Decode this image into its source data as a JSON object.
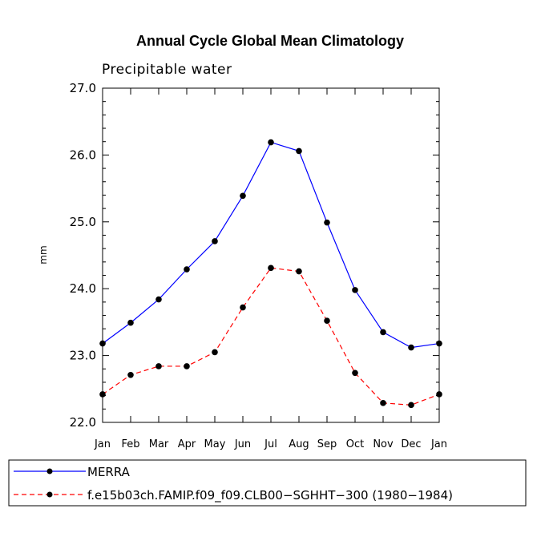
{
  "chart_data": {
    "type": "line",
    "title": "Annual Cycle Global Mean Climatology",
    "subtitle": "Precipitable water",
    "xlabel": "",
    "ylabel": "mm",
    "categories": [
      "Jan",
      "Feb",
      "Mar",
      "Apr",
      "May",
      "Jun",
      "Jul",
      "Aug",
      "Sep",
      "Oct",
      "Nov",
      "Dec",
      "Jan"
    ],
    "ylim": [
      22.0,
      27.0
    ],
    "yticks": [
      "22.0",
      "23.0",
      "24.0",
      "25.0",
      "26.0",
      "27.0"
    ],
    "grid": false,
    "legend_position": "bottom",
    "series": [
      {
        "name": "MERRA",
        "color": "#0000ff",
        "dash": "solid",
        "values": [
          23.18,
          23.49,
          23.84,
          24.29,
          24.71,
          25.39,
          26.19,
          26.06,
          24.99,
          23.98,
          23.35,
          23.12,
          23.18
        ]
      },
      {
        "name": "f.e15b03ch.FAMIP.f09_f09.CLB00−SGHHT−300 (1980−1984)",
        "color": "#ff0000",
        "dash": "dashed",
        "values": [
          22.42,
          22.71,
          22.84,
          22.84,
          23.05,
          23.72,
          24.31,
          24.26,
          23.52,
          22.74,
          22.29,
          22.26,
          22.42
        ]
      }
    ]
  }
}
